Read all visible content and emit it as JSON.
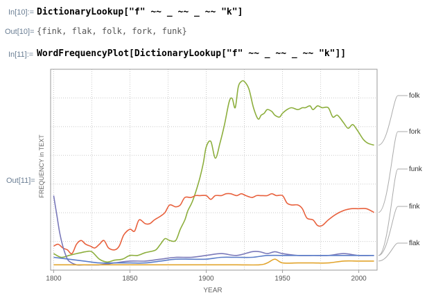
{
  "cells": {
    "in10_label": "In[10]:=",
    "in10_code": "DictionaryLookup[\"f\" ~~ _ ~~ _ ~~ \"k\"]",
    "out10_label": "Out[10]=",
    "out10_value": "{fink, flak, folk, fork, funk}",
    "in11_label": "In[11]:=",
    "in11_code": "WordFrequencyPlot[DictionaryLookup[\"f\" ~~ _ ~~ _ ~~ \"k\"]]",
    "out11_label": "Out[11]="
  },
  "chart_data": {
    "type": "line",
    "xlabel": "YEAR",
    "ylabel": "FREQUENCY in TEXT",
    "xlim": [
      1798,
      2012
    ],
    "ylim": [
      0,
      1
    ],
    "xticks": [
      1800,
      1850,
      1900,
      1950,
      2000
    ],
    "grid": true,
    "series": [
      {
        "name": "folk",
        "color": "#8cae3c",
        "x": [
          1800,
          1805,
          1810,
          1815,
          1818,
          1821,
          1825,
          1830,
          1835,
          1840,
          1845,
          1850,
          1855,
          1860,
          1863,
          1867,
          1870,
          1873,
          1876,
          1880,
          1883,
          1886,
          1888,
          1891,
          1895,
          1898,
          1900,
          1903,
          1906,
          1909,
          1912,
          1915,
          1917,
          1919,
          1921,
          1923,
          1925,
          1928,
          1931,
          1934,
          1936,
          1938,
          1940,
          1943,
          1945,
          1948,
          1950,
          1953,
          1956,
          1960,
          1963,
          1965,
          1968,
          1970,
          1973,
          1976,
          1980,
          1983,
          1986,
          1990,
          1993,
          1996,
          1999,
          2003,
          2006,
          2010
        ],
        "y": [
          0.07,
          0.05,
          0.06,
          0.07,
          0.075,
          0.08,
          0.08,
          0.04,
          0.025,
          0.035,
          0.04,
          0.06,
          0.06,
          0.075,
          0.08,
          0.09,
          0.12,
          0.15,
          0.14,
          0.14,
          0.2,
          0.25,
          0.3,
          0.35,
          0.45,
          0.55,
          0.64,
          0.67,
          0.58,
          0.66,
          0.76,
          0.88,
          0.9,
          0.85,
          0.96,
          0.99,
          0.99,
          0.95,
          0.85,
          0.79,
          0.81,
          0.82,
          0.84,
          0.83,
          0.81,
          0.8,
          0.82,
          0.84,
          0.85,
          0.84,
          0.85,
          0.85,
          0.86,
          0.84,
          0.86,
          0.85,
          0.85,
          0.8,
          0.81,
          0.77,
          0.74,
          0.76,
          0.73,
          0.68,
          0.66,
          0.65
        ]
      },
      {
        "name": "fork",
        "color": "#e8603c",
        "x": [
          1800,
          1803,
          1806,
          1809,
          1812,
          1815,
          1818,
          1821,
          1824,
          1827,
          1830,
          1833,
          1836,
          1840,
          1843,
          1846,
          1850,
          1853,
          1856,
          1860,
          1863,
          1866,
          1870,
          1873,
          1876,
          1880,
          1883,
          1886,
          1890,
          1893,
          1896,
          1900,
          1903,
          1906,
          1910,
          1913,
          1916,
          1920,
          1923,
          1926,
          1930,
          1933,
          1936,
          1940,
          1943,
          1946,
          1950,
          1953,
          1956,
          1960,
          1963,
          1966,
          1970,
          1973,
          1976,
          1980,
          1985,
          1990,
          1995,
          2000,
          2005,
          2010
        ],
        "y": [
          0.11,
          0.12,
          0.1,
          0.09,
          0.07,
          0.12,
          0.14,
          0.12,
          0.11,
          0.1,
          0.12,
          0.14,
          0.1,
          0.09,
          0.11,
          0.17,
          0.2,
          0.19,
          0.25,
          0.23,
          0.23,
          0.25,
          0.27,
          0.29,
          0.33,
          0.32,
          0.33,
          0.37,
          0.37,
          0.38,
          0.38,
          0.38,
          0.36,
          0.38,
          0.38,
          0.39,
          0.39,
          0.38,
          0.39,
          0.38,
          0.37,
          0.38,
          0.38,
          0.38,
          0.39,
          0.38,
          0.38,
          0.34,
          0.33,
          0.33,
          0.31,
          0.26,
          0.25,
          0.22,
          0.22,
          0.25,
          0.28,
          0.3,
          0.31,
          0.31,
          0.31,
          0.29
        ]
      },
      {
        "name": "funk",
        "color": "#7978b9",
        "x": [
          1800,
          1802,
          1804,
          1806,
          1808,
          1810,
          1815,
          1820,
          1830,
          1840,
          1850,
          1860,
          1870,
          1880,
          1890,
          1900,
          1910,
          1920,
          1930,
          1935,
          1940,
          1945,
          1950,
          1960,
          1970,
          1980,
          1990,
          2000,
          2010
        ],
        "y": [
          0.38,
          0.28,
          0.18,
          0.11,
          0.06,
          0.03,
          0.01,
          0.01,
          0.01,
          0.02,
          0.03,
          0.03,
          0.04,
          0.05,
          0.05,
          0.06,
          0.07,
          0.06,
          0.08,
          0.08,
          0.07,
          0.08,
          0.07,
          0.06,
          0.06,
          0.06,
          0.07,
          0.06,
          0.06
        ]
      },
      {
        "name": "fink",
        "color": "#5a7cc8",
        "x": [
          1800,
          1810,
          1820,
          1830,
          1840,
          1850,
          1860,
          1870,
          1880,
          1890,
          1900,
          1910,
          1920,
          1930,
          1940,
          1950,
          1960,
          1970,
          1980,
          1990,
          2000,
          2010
        ],
        "y": [
          0.05,
          0.04,
          0.03,
          0.02,
          0.02,
          0.02,
          0.02,
          0.03,
          0.04,
          0.04,
          0.04,
          0.05,
          0.05,
          0.05,
          0.06,
          0.06,
          0.06,
          0.06,
          0.06,
          0.06,
          0.06,
          0.06
        ]
      },
      {
        "name": "flak",
        "color": "#e2a42c",
        "x": [
          1800,
          1820,
          1840,
          1860,
          1880,
          1900,
          1920,
          1935,
          1940,
          1945,
          1950,
          1960,
          1970,
          1980,
          1990,
          2000,
          2010
        ],
        "y": [
          0.01,
          0.01,
          0.01,
          0.01,
          0.01,
          0.01,
          0.01,
          0.01,
          0.02,
          0.04,
          0.02,
          0.02,
          0.02,
          0.02,
          0.03,
          0.03,
          0.03
        ]
      }
    ]
  }
}
